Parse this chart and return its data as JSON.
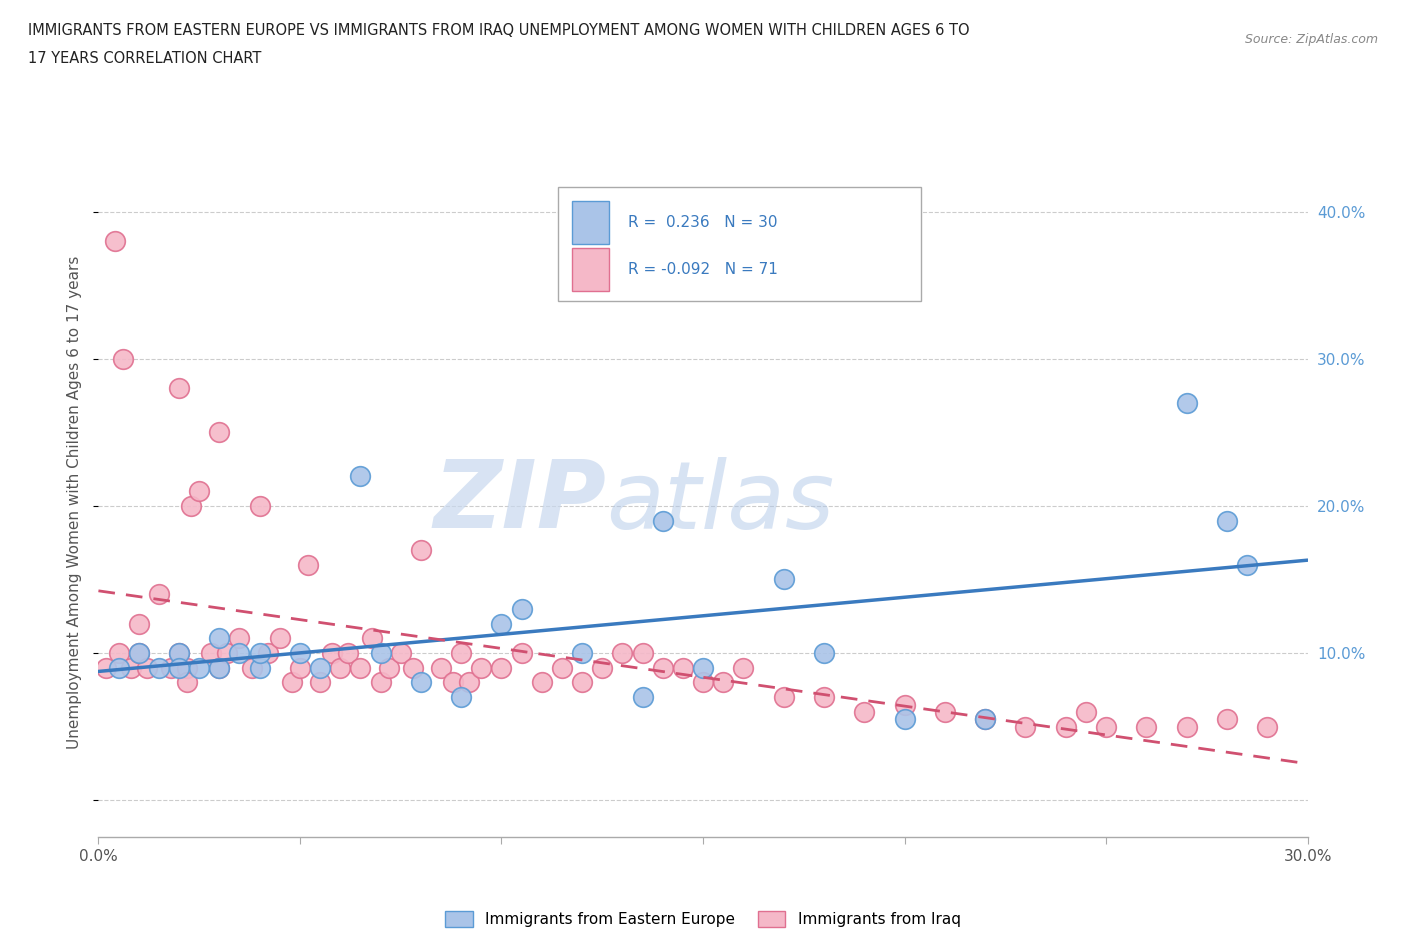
{
  "title_line1": "IMMIGRANTS FROM EASTERN EUROPE VS IMMIGRANTS FROM IRAQ UNEMPLOYMENT AMONG WOMEN WITH CHILDREN AGES 6 TO",
  "title_line2": "17 YEARS CORRELATION CHART",
  "source": "Source: ZipAtlas.com",
  "ylabel": "Unemployment Among Women with Children Ages 6 to 17 years",
  "xlim": [
    0.0,
    0.3
  ],
  "ylim": [
    -0.025,
    0.43
  ],
  "xticks": [
    0.0,
    0.05,
    0.1,
    0.15,
    0.2,
    0.25,
    0.3
  ],
  "xtick_labels": [
    "0.0%",
    "",
    "",
    "",
    "",
    "",
    "30.0%"
  ],
  "ytick_positions": [
    0.0,
    0.1,
    0.2,
    0.3,
    0.4
  ],
  "ytick_labels": [
    "",
    "10.0%",
    "20.0%",
    "30.0%",
    "40.0%"
  ],
  "watermark_zip": "ZIP",
  "watermark_atlas": "atlas",
  "r_eastern": 0.236,
  "n_eastern": 30,
  "r_iraq": -0.092,
  "n_iraq": 71,
  "eastern_europe_fill": "#aac4e8",
  "eastern_europe_edge": "#5b9bd5",
  "iraq_fill": "#f5b8c8",
  "iraq_edge": "#e07090",
  "legend_label_eastern": "Immigrants from Eastern Europe",
  "legend_label_iraq": "Immigrants from Iraq",
  "trend_eastern_color": "#3a7abf",
  "trend_iraq_color": "#d05070",
  "eastern_europe_x": [
    0.005,
    0.01,
    0.015,
    0.02,
    0.02,
    0.025,
    0.03,
    0.03,
    0.035,
    0.04,
    0.04,
    0.05,
    0.055,
    0.065,
    0.07,
    0.08,
    0.09,
    0.1,
    0.105,
    0.12,
    0.135,
    0.14,
    0.15,
    0.17,
    0.18,
    0.2,
    0.22,
    0.27,
    0.28,
    0.285
  ],
  "eastern_europe_y": [
    0.09,
    0.1,
    0.09,
    0.1,
    0.09,
    0.09,
    0.11,
    0.09,
    0.1,
    0.09,
    0.1,
    0.1,
    0.09,
    0.22,
    0.1,
    0.08,
    0.07,
    0.12,
    0.13,
    0.1,
    0.07,
    0.19,
    0.09,
    0.15,
    0.1,
    0.055,
    0.055,
    0.27,
    0.19,
    0.16
  ],
  "iraq_x": [
    0.002,
    0.004,
    0.005,
    0.006,
    0.008,
    0.01,
    0.01,
    0.012,
    0.015,
    0.018,
    0.02,
    0.02,
    0.022,
    0.022,
    0.023,
    0.025,
    0.028,
    0.03,
    0.03,
    0.032,
    0.035,
    0.038,
    0.04,
    0.042,
    0.045,
    0.048,
    0.05,
    0.052,
    0.055,
    0.058,
    0.06,
    0.062,
    0.065,
    0.068,
    0.07,
    0.072,
    0.075,
    0.078,
    0.08,
    0.085,
    0.088,
    0.09,
    0.092,
    0.095,
    0.1,
    0.105,
    0.11,
    0.115,
    0.12,
    0.125,
    0.13,
    0.135,
    0.14,
    0.145,
    0.15,
    0.155,
    0.16,
    0.17,
    0.18,
    0.19,
    0.2,
    0.21,
    0.22,
    0.23,
    0.24,
    0.245,
    0.25,
    0.26,
    0.27,
    0.28,
    0.29
  ],
  "iraq_y": [
    0.09,
    0.38,
    0.1,
    0.3,
    0.09,
    0.1,
    0.12,
    0.09,
    0.14,
    0.09,
    0.28,
    0.1,
    0.09,
    0.08,
    0.2,
    0.21,
    0.1,
    0.25,
    0.09,
    0.1,
    0.11,
    0.09,
    0.2,
    0.1,
    0.11,
    0.08,
    0.09,
    0.16,
    0.08,
    0.1,
    0.09,
    0.1,
    0.09,
    0.11,
    0.08,
    0.09,
    0.1,
    0.09,
    0.17,
    0.09,
    0.08,
    0.1,
    0.08,
    0.09,
    0.09,
    0.1,
    0.08,
    0.09,
    0.08,
    0.09,
    0.1,
    0.1,
    0.09,
    0.09,
    0.08,
    0.08,
    0.09,
    0.07,
    0.07,
    0.06,
    0.065,
    0.06,
    0.055,
    0.05,
    0.05,
    0.06,
    0.05,
    0.05,
    0.05,
    0.055,
    0.05
  ]
}
